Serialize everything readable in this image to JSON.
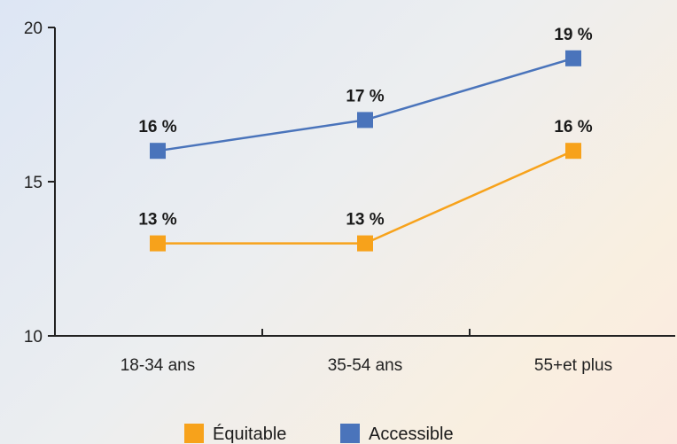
{
  "chart_data": {
    "type": "line",
    "categories": [
      "18-34 ans",
      "35-54 ans",
      "55+et plus"
    ],
    "ylim": [
      10,
      20
    ],
    "yticks": [
      10,
      15,
      20
    ],
    "grid": false,
    "legend_position": "bottom",
    "series": [
      {
        "name": "Équitable",
        "color": "#f7a21b",
        "values": [
          13,
          13,
          16
        ],
        "labels": [
          "13 %",
          "13 %",
          "16 %"
        ]
      },
      {
        "name": "Accessible",
        "color": "#4a74bb",
        "values": [
          16,
          17,
          19
        ],
        "labels": [
          "16 %",
          "17 %",
          "19 %"
        ]
      }
    ]
  }
}
